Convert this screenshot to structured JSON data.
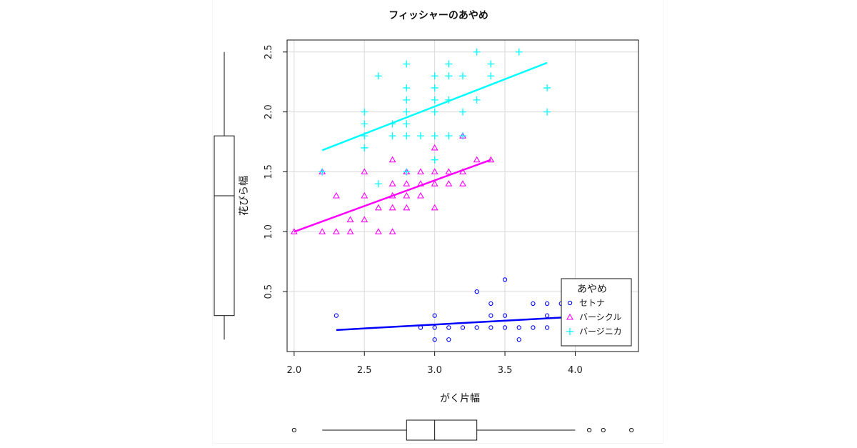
{
  "chart_data": {
    "type": "scatter",
    "title": "フィッシャーのあやめ",
    "xlabel": "がく片幅",
    "ylabel": "花びら幅",
    "xlim": [
      1.95,
      4.45
    ],
    "ylim": [
      0.0,
      2.6
    ],
    "xticks": [
      "2.0",
      "2.5",
      "3.0",
      "3.5",
      "4.0"
    ],
    "yticks": [
      "0.5",
      "1.0",
      "1.5",
      "2.0",
      "2.5"
    ],
    "grid": true,
    "legend": {
      "title": "あやめ",
      "position": "bottom-right"
    },
    "series": [
      {
        "name": "セトナ",
        "color": "#0000ff",
        "marker": "circle",
        "points": [
          [
            2.3,
            0.3
          ],
          [
            3.0,
            0.1
          ],
          [
            3.0,
            0.2
          ],
          [
            3.0,
            0.3
          ],
          [
            3.1,
            0.1
          ],
          [
            3.1,
            0.2
          ],
          [
            3.2,
            0.2
          ],
          [
            3.3,
            0.2
          ],
          [
            3.3,
            0.5
          ],
          [
            3.4,
            0.2
          ],
          [
            3.4,
            0.3
          ],
          [
            3.4,
            0.4
          ],
          [
            3.5,
            0.2
          ],
          [
            3.5,
            0.3
          ],
          [
            3.5,
            0.6
          ],
          [
            3.6,
            0.1
          ],
          [
            3.6,
            0.2
          ],
          [
            3.7,
            0.2
          ],
          [
            3.7,
            0.4
          ],
          [
            3.8,
            0.2
          ],
          [
            3.8,
            0.3
          ],
          [
            3.8,
            0.4
          ],
          [
            3.9,
            0.4
          ],
          [
            2.9,
            0.2
          ]
        ],
        "fit": [
          [
            2.3,
            0.18
          ],
          [
            4.0,
            0.29
          ]
        ]
      },
      {
        "name": "バーシクル",
        "color": "#ff00ff",
        "marker": "triangle",
        "points": [
          [
            2.0,
            1.0
          ],
          [
            2.2,
            1.0
          ],
          [
            2.2,
            1.5
          ],
          [
            2.3,
            1.0
          ],
          [
            2.3,
            1.3
          ],
          [
            2.4,
            1.0
          ],
          [
            2.4,
            1.1
          ],
          [
            2.5,
            1.1
          ],
          [
            2.5,
            1.3
          ],
          [
            2.5,
            1.5
          ],
          [
            2.6,
            1.0
          ],
          [
            2.6,
            1.2
          ],
          [
            2.7,
            1.0
          ],
          [
            2.7,
            1.2
          ],
          [
            2.7,
            1.3
          ],
          [
            2.7,
            1.4
          ],
          [
            2.7,
            1.6
          ],
          [
            2.8,
            1.2
          ],
          [
            2.8,
            1.3
          ],
          [
            2.8,
            1.4
          ],
          [
            2.8,
            1.5
          ],
          [
            2.9,
            1.3
          ],
          [
            2.9,
            1.4
          ],
          [
            2.9,
            1.5
          ],
          [
            3.0,
            1.2
          ],
          [
            3.0,
            1.4
          ],
          [
            3.0,
            1.5
          ],
          [
            3.0,
            1.7
          ],
          [
            3.1,
            1.4
          ],
          [
            3.1,
            1.5
          ],
          [
            3.2,
            1.4
          ],
          [
            3.2,
            1.5
          ],
          [
            3.2,
            1.8
          ],
          [
            3.3,
            1.6
          ],
          [
            3.4,
            1.6
          ],
          [
            2.8,
            1.5
          ]
        ],
        "fit": [
          [
            2.0,
            1.0
          ],
          [
            3.4,
            1.6
          ]
        ]
      },
      {
        "name": "バージニカ",
        "color": "#00ffff",
        "marker": "plus",
        "points": [
          [
            2.2,
            1.5
          ],
          [
            2.5,
            1.7
          ],
          [
            2.5,
            1.8
          ],
          [
            2.5,
            1.9
          ],
          [
            2.5,
            2.0
          ],
          [
            2.6,
            1.4
          ],
          [
            2.6,
            2.3
          ],
          [
            2.7,
            1.8
          ],
          [
            2.7,
            1.9
          ],
          [
            2.8,
            1.5
          ],
          [
            2.8,
            1.8
          ],
          [
            2.8,
            1.9
          ],
          [
            2.8,
            2.0
          ],
          [
            2.8,
            2.1
          ],
          [
            2.8,
            2.2
          ],
          [
            2.8,
            2.4
          ],
          [
            2.9,
            1.8
          ],
          [
            3.0,
            1.6
          ],
          [
            3.0,
            1.8
          ],
          [
            3.0,
            2.0
          ],
          [
            3.0,
            2.1
          ],
          [
            3.0,
            2.2
          ],
          [
            3.0,
            2.3
          ],
          [
            3.1,
            1.8
          ],
          [
            3.1,
            2.1
          ],
          [
            3.1,
            2.3
          ],
          [
            3.1,
            2.4
          ],
          [
            3.2,
            1.8
          ],
          [
            3.2,
            2.0
          ],
          [
            3.2,
            2.3
          ],
          [
            3.3,
            2.1
          ],
          [
            3.3,
            2.5
          ],
          [
            3.4,
            2.3
          ],
          [
            3.4,
            2.4
          ],
          [
            3.6,
            2.5
          ],
          [
            3.8,
            2.0
          ],
          [
            3.8,
            2.2
          ]
        ],
        "fit": [
          [
            2.2,
            1.68
          ],
          [
            3.8,
            2.41
          ]
        ]
      }
    ],
    "marginal_boxplot_y": {
      "min": 0.1,
      "q1": 0.3,
      "median": 1.3,
      "q3": 1.8,
      "max": 2.5
    },
    "marginal_boxplot_x": {
      "min": 2.2,
      "q1": 2.8,
      "median": 3.0,
      "q3": 3.3,
      "max": 4.0,
      "outliers": [
        2.0,
        4.1,
        4.2,
        4.4
      ]
    }
  }
}
